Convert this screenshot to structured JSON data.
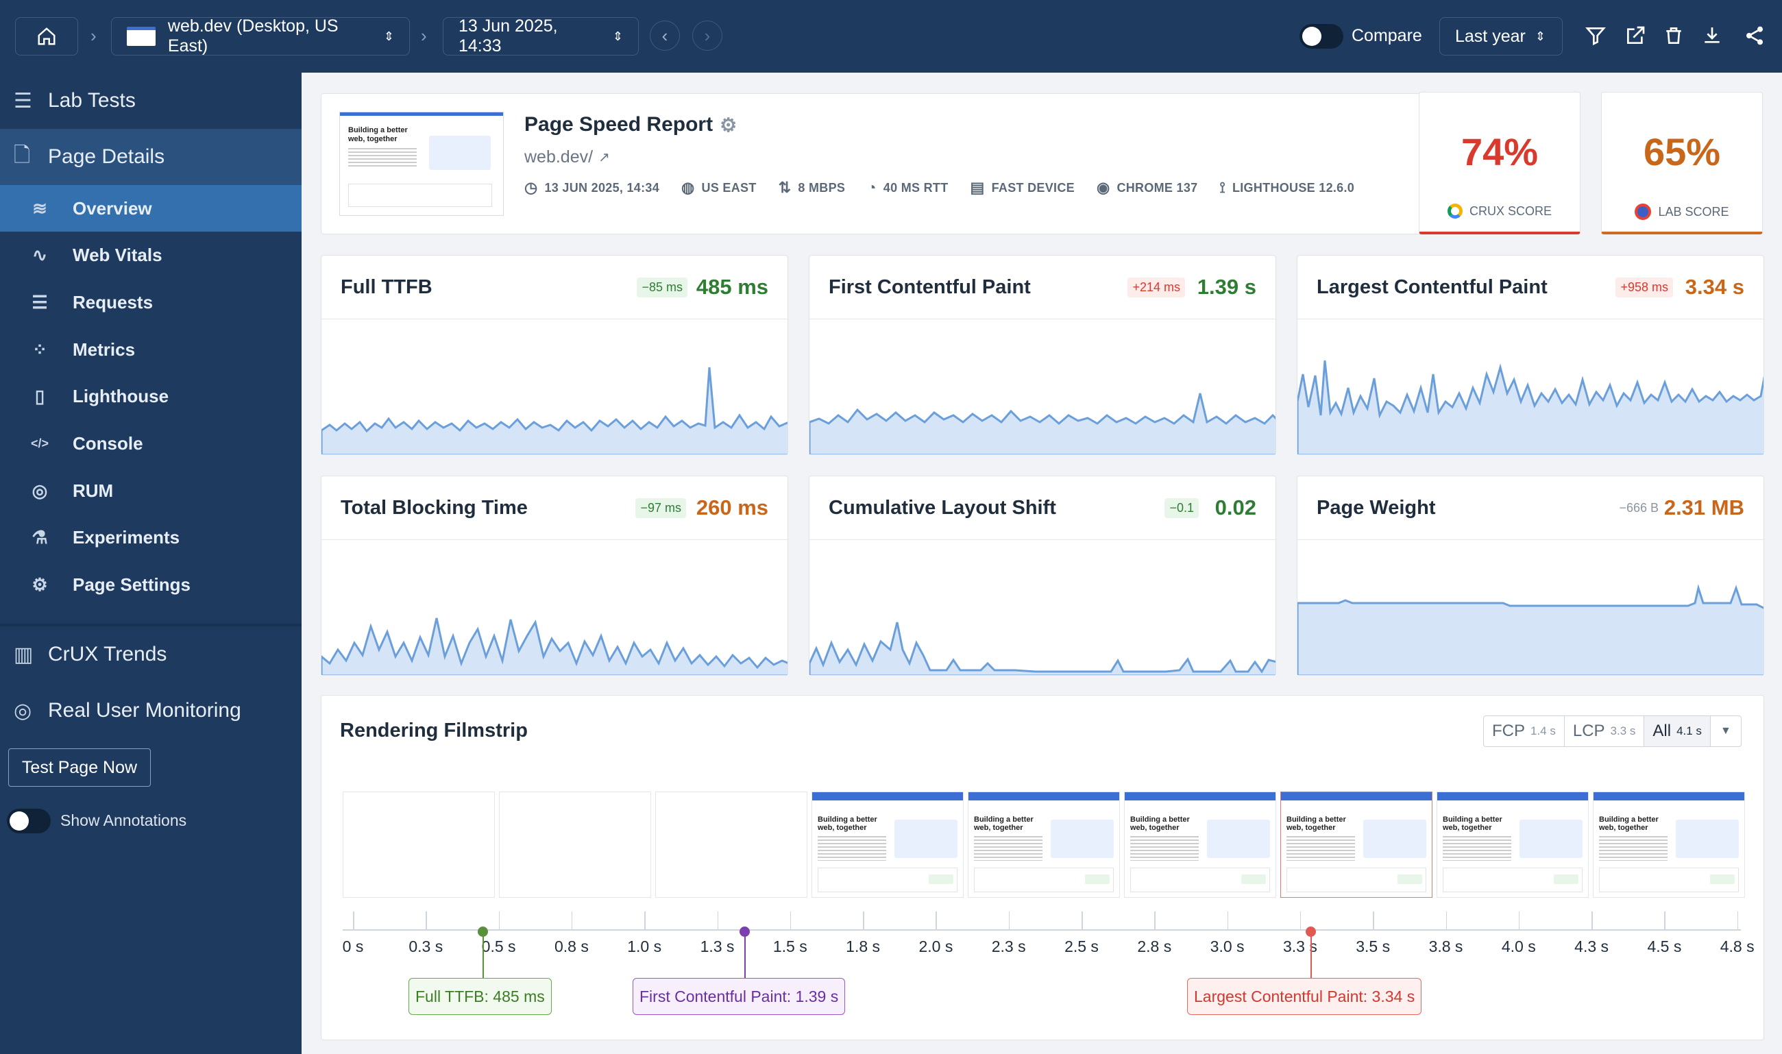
{
  "topbar": {
    "site_label": "web.dev (Desktop, US East)",
    "date_label": "13 Jun 2025, 14:33",
    "compare_label": "Compare",
    "range_label": "Last year"
  },
  "sidebar": {
    "lab_tests": "Lab Tests",
    "page_details": "Page Details",
    "items": [
      {
        "label": "Overview",
        "icon": "layers-icon"
      },
      {
        "label": "Web Vitals",
        "icon": "pulse-icon"
      },
      {
        "label": "Requests",
        "icon": "list-icon"
      },
      {
        "label": "Metrics",
        "icon": "scatter-icon"
      },
      {
        "label": "Lighthouse",
        "icon": "lighthouse-icon"
      },
      {
        "label": "Console",
        "icon": "code-icon"
      },
      {
        "label": "RUM",
        "icon": "rum-icon"
      },
      {
        "label": "Experiments",
        "icon": "flask-icon"
      },
      {
        "label": "Page Settings",
        "icon": "gear-icon"
      }
    ],
    "crux_trends": "CrUX Trends",
    "rum": "Real User Monitoring",
    "test_now": "Test Page Now",
    "show_annotations": "Show Annotations"
  },
  "report": {
    "title": "Page Speed Report",
    "url": "web.dev/",
    "thumb_title": "Building a better web, together",
    "meta": {
      "date": "13 JUN 2025, 14:34",
      "location": "US EAST",
      "bandwidth": "8 MBPS",
      "rtt": "40 MS RTT",
      "device": "FAST DEVICE",
      "browser": "CHROME 137",
      "lighthouse": "LIGHTHOUSE 12.6.0"
    }
  },
  "scores": {
    "crux": {
      "value": "74%",
      "label": "CRUX SCORE",
      "color": "#d83a2e"
    },
    "lab": {
      "value": "65%",
      "label": "LAB SCORE",
      "color": "#d2691e"
    }
  },
  "metrics": [
    {
      "title": "Full TTFB",
      "delta": "−85 ms",
      "value": "485 ms",
      "tone": "good"
    },
    {
      "title": "First Contentful Paint",
      "delta": "+214 ms",
      "value": "1.39 s",
      "tone": "good-bad"
    },
    {
      "title": "Largest Contentful Paint",
      "delta": "+958 ms",
      "value": "3.34 s",
      "tone": "warn-bad"
    },
    {
      "title": "Total Blocking Time",
      "delta": "−97 ms",
      "value": "260 ms",
      "tone": "warn-good"
    },
    {
      "title": "Cumulative Layout Shift",
      "delta": "−0.1",
      "value": "0.02",
      "tone": "good"
    },
    {
      "title": "Page Weight",
      "delta": "−666 B",
      "value": "2.31 MB",
      "tone": "warn-neutral"
    }
  ],
  "filmstrip": {
    "title": "Rendering Filmstrip",
    "options": [
      {
        "name": "FCP",
        "value": "1.4 s"
      },
      {
        "name": "LCP",
        "value": "3.3 s"
      },
      {
        "name": "All",
        "value": "4.1 s"
      }
    ],
    "frame_title": "Building a better web, together",
    "ticks": [
      "0 s",
      "0.3 s",
      "0.5 s",
      "0.8 s",
      "1.0 s",
      "1.3 s",
      "1.5 s",
      "1.8 s",
      "2.0 s",
      "2.3 s",
      "2.5 s",
      "2.8 s",
      "3.0 s",
      "3.3 s",
      "3.5 s",
      "3.8 s",
      "4.0 s",
      "4.3 s",
      "4.5 s",
      "4.8 s"
    ],
    "markers": {
      "ttfb": "Full TTFB: 485 ms",
      "fcp": "First Contentful Paint: 1.39 s",
      "lcp": "Largest Contentful Paint: 3.34 s"
    }
  },
  "colors": {
    "good": "#2e7d32",
    "warn": "#c8661a",
    "bad": "#d83a2e",
    "accent": "#2e6aa8",
    "sidebar": "#1e3a5f"
  }
}
